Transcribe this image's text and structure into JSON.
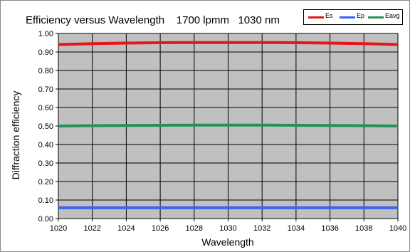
{
  "chart_data": {
    "type": "line",
    "title": "Efficiency versus Wavelength    1700 lpmm   1030 nm",
    "xlabel": "Wavelength",
    "ylabel": "Diffraction efficiency",
    "xlim": [
      1020,
      1040
    ],
    "ylim": [
      0.0,
      1.0
    ],
    "x_ticks": [
      "1020",
      "1022",
      "1024",
      "1026",
      "1028",
      "1030",
      "1032",
      "1034",
      "1036",
      "1038",
      "1040"
    ],
    "y_ticks": [
      "0.00",
      "0.10",
      "0.20",
      "0.30",
      "0.40",
      "0.50",
      "0.60",
      "0.70",
      "0.80",
      "0.90",
      "1.00"
    ],
    "grid": true,
    "legend_position": "top-right",
    "x": [
      1020,
      1022,
      1024,
      1026,
      1028,
      1030,
      1032,
      1034,
      1036,
      1038,
      1040
    ],
    "series": [
      {
        "name": "Es",
        "color": "#e8141b",
        "values": [
          0.94,
          0.945,
          0.948,
          0.95,
          0.951,
          0.951,
          0.951,
          0.95,
          0.948,
          0.945,
          0.94
        ]
      },
      {
        "name": "Ep",
        "color": "#3a64f0",
        "values": [
          0.058,
          0.058,
          0.058,
          0.058,
          0.058,
          0.058,
          0.058,
          0.058,
          0.058,
          0.058,
          0.058
        ]
      },
      {
        "name": "Eavg",
        "color": "#23925a",
        "values": [
          0.5,
          0.502,
          0.503,
          0.504,
          0.505,
          0.505,
          0.505,
          0.504,
          0.503,
          0.502,
          0.5
        ]
      }
    ],
    "plot_background": "#c0c0c0",
    "grid_color": "#000000"
  }
}
